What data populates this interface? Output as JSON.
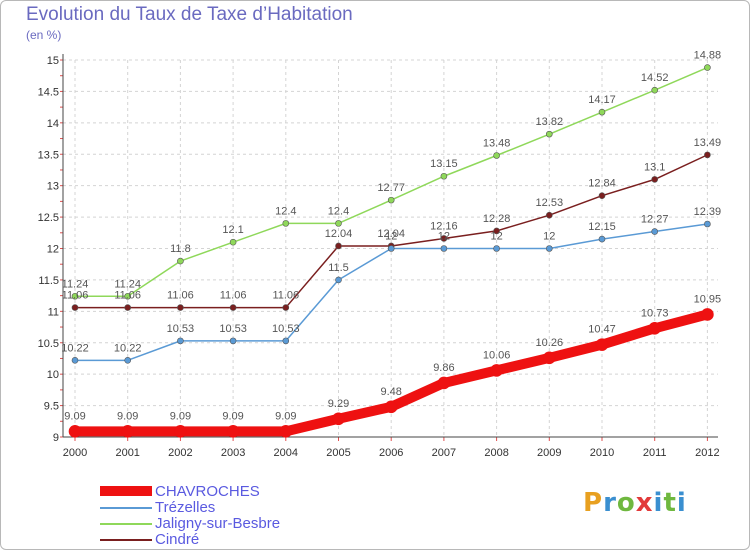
{
  "title": "Evolution du Taux de Taxe d’Habitation",
  "unit_label": "(en %)",
  "logo": {
    "letters": [
      "P",
      "r",
      "o",
      "x",
      "i",
      "t",
      "i"
    ],
    "colors": [
      "#e8a020",
      "#3a8fd0",
      "#6fb83f",
      "#e23a3a",
      "#3a8fd0",
      "#6fb83f",
      "#3a8fd0"
    ]
  },
  "chart_data": {
    "type": "line",
    "x": [
      "2000",
      "2001",
      "2002",
      "2003",
      "2004",
      "2005",
      "2006",
      "2007",
      "2008",
      "2009",
      "2010",
      "2011",
      "2012"
    ],
    "ylim": [
      9,
      15
    ],
    "yticks": [
      "9",
      "9.5",
      "10",
      "10.5",
      "11",
      "11.5",
      "12",
      "12.5",
      "13",
      "13.5",
      "14",
      "14.5",
      "15"
    ],
    "grid": true,
    "legend_position": "bottom-left",
    "series": [
      {
        "name": "CHAVROCHES",
        "color": "#ee1111",
        "width": 10,
        "values": [
          9.09,
          9.09,
          9.09,
          9.09,
          9.09,
          9.29,
          9.48,
          9.86,
          10.06,
          10.26,
          10.47,
          10.73,
          10.95
        ],
        "labels": [
          "9.09",
          "9.09",
          "9.09",
          "9.09",
          "9.09",
          "9.29",
          "9.48",
          "9.86",
          "10.06",
          "10.26",
          "10.47",
          "10.73",
          "10.95"
        ]
      },
      {
        "name": "Trézelles",
        "color": "#5a9ad5",
        "width": 1.5,
        "values": [
          10.22,
          10.22,
          10.53,
          10.53,
          10.53,
          11.5,
          12,
          12,
          12,
          12,
          12.15,
          12.27,
          12.39
        ],
        "labels": [
          "10.22",
          "10.22",
          "10.53",
          "10.53",
          "10.53",
          "11.5",
          "12",
          "12",
          "12",
          "12",
          "12.15",
          "12.27",
          "12.39"
        ]
      },
      {
        "name": "Jaligny-sur-Besbre",
        "color": "#8fd85a",
        "width": 1.5,
        "values": [
          11.24,
          11.24,
          11.8,
          12.1,
          12.4,
          12.4,
          12.77,
          13.15,
          13.48,
          13.82,
          14.17,
          14.52,
          14.88
        ],
        "labels": [
          "11.24",
          "11.24",
          "11.8",
          "12.1",
          "12.4",
          "12.4",
          "12.77",
          "13.15",
          "13.48",
          "13.82",
          "14.17",
          "14.52",
          "14.88"
        ]
      },
      {
        "name": "Cindré",
        "color": "#7a1f1f",
        "width": 1.5,
        "values": [
          11.06,
          11.06,
          11.06,
          11.06,
          11.06,
          12.04,
          12.04,
          12.16,
          12.28,
          12.53,
          12.84,
          13.1,
          13.49
        ],
        "labels": [
          "11.06",
          "11.06",
          "11.06",
          "11.06",
          "11.06",
          "12.04",
          "12.04",
          "12.16",
          "12.28",
          "12.53",
          "12.84",
          "13.1",
          "13.49"
        ]
      }
    ]
  }
}
